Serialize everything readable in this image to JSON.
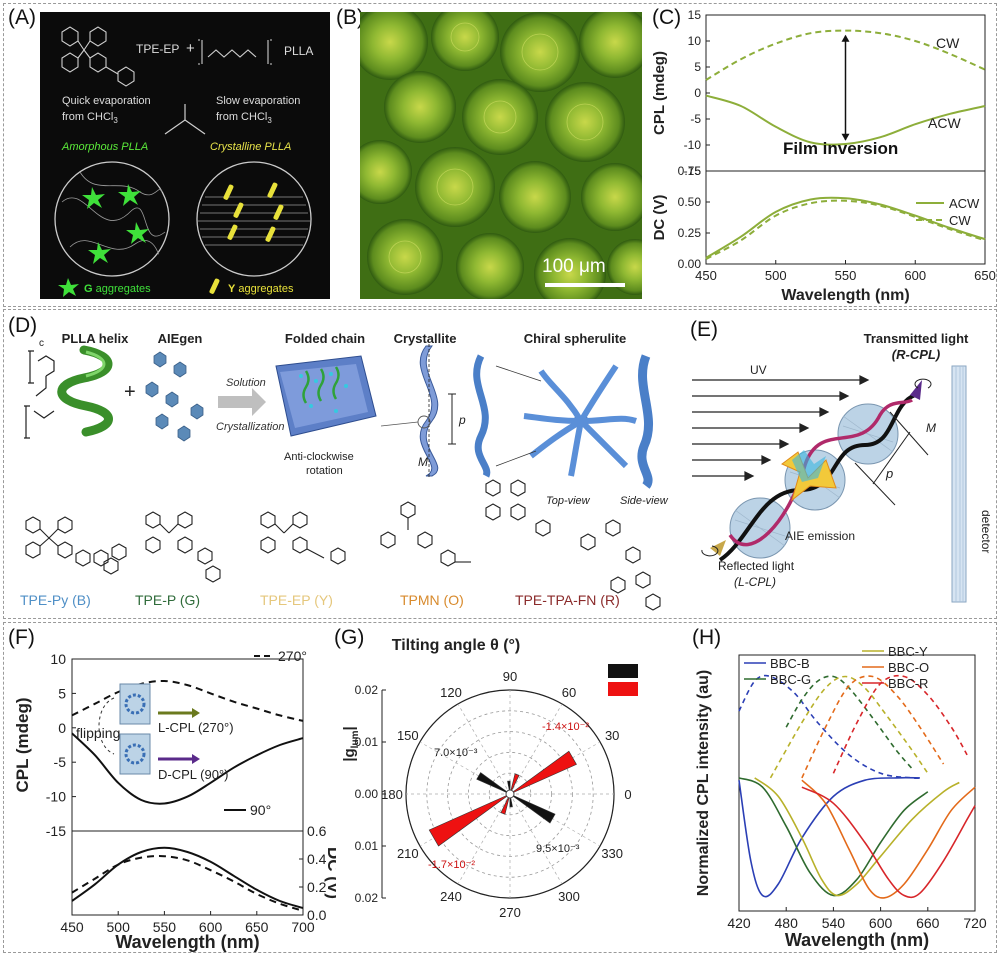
{
  "panels": {
    "A": {
      "label": "(A)",
      "tpe_ep": "TPE-EP",
      "plus": "+",
      "plla": "PLLA",
      "quick": "Quick evaporation",
      "quick2": "from CHCl",
      "slow": "Slow evaporation",
      "slow2": "from CHCl",
      "sub3": "3",
      "amorphous": "Amorphous PLLA",
      "crystalline": "Crystalline PLLA",
      "g_agg": "G aggregates",
      "y_agg": "Y aggregates",
      "g_letter": "G",
      "y_letter": "Y",
      "g_rest": " aggregates",
      "y_rest": " aggregates"
    },
    "B": {
      "label": "(B)",
      "scale": "100 μm"
    },
    "C": {
      "label": "(C)",
      "ylabel_top": "CPL (mdeg)",
      "ylabel_bot": "DC (V)",
      "xlabel": "Wavelength (nm)",
      "cw": "CW",
      "acw": "ACW",
      "film": "Film inversion",
      "legend_acw": "ACW",
      "legend_cw": "CW"
    },
    "D": {
      "label": "(D)",
      "h1": "PLLA helix",
      "h2": "AIEgen",
      "h3": "Folded chain",
      "h4": "Crystallite",
      "h5": "Chiral spherulite",
      "solution": "Solution",
      "cryst": "Crystallization",
      "anti": "Anti-clockwise",
      "rotation": "rotation",
      "p": "p",
      "m": "M",
      "top": "Top-view",
      "side": "Side-view",
      "c_letter": "c",
      "compounds": [
        {
          "name": "TPE-Py (B)",
          "color": "#4f8fc6"
        },
        {
          "name": "TPE-P (G)",
          "color": "#2f6b3a"
        },
        {
          "name": "TPE-EP (Y)",
          "color": "#e5c77c"
        },
        {
          "name": "TPMN (O)",
          "color": "#d88a2c"
        },
        {
          "name": "TPE-TPA-FN (R)",
          "color": "#8a2a2a"
        }
      ]
    },
    "E": {
      "label": "(E)",
      "trans": "Transmitted light",
      "rcpl": "(R-CPL)",
      "uv": "UV",
      "m": "M",
      "p": "p",
      "aie": "AIE emission",
      "refl": "Reflected light",
      "lcpl": "(L-CPL)",
      "detector": "detector"
    },
    "F": {
      "label": "(F)",
      "ylabel_top": "CPL (mdeg)",
      "ylabel_right": "DC (V)",
      "xlabel": "Wavelength (nm)",
      "leg270": "270°",
      "leg90": "90°",
      "lcpl": "L-CPL (270°)",
      "dcpl": "D-CPL (90°)",
      "flipping": "flipping"
    },
    "G": {
      "label": "(G)",
      "title": "Tilting angle θ (°)",
      "ylabel": "|g",
      "ysub": "lum",
      "ann1": "7.0×10⁻³",
      "ann2": "-1.4×10⁻²",
      "ann3": "-1.7×10⁻²",
      "ann4": "9.5×10⁻³",
      "radial_ticks_up": [
        "0.02",
        "0.01",
        "0.00"
      ],
      "radial_ticks_down": [
        "0.01",
        "0.02"
      ],
      "angles": [
        "90",
        "60",
        "30",
        "0",
        "330",
        "300",
        "270",
        "240",
        "210",
        "180",
        "150",
        "120"
      ]
    },
    "H": {
      "label": "(H)",
      "ylabel": "Normalized CPL intensity (au)",
      "xlabel": "Wavelength (nm)",
      "legend": [
        {
          "name": "BBC-B",
          "color": "#2b3fb5"
        },
        {
          "name": "BBC-G",
          "color": "#2f6b2f"
        },
        {
          "name": "BBC-Y",
          "color": "#b8b12a"
        },
        {
          "name": "BBC-O",
          "color": "#e36a1a"
        },
        {
          "name": "BBC-R",
          "color": "#d8262a"
        }
      ]
    }
  },
  "chart_data": [
    {
      "panel": "C",
      "type": "line",
      "xlabel": "Wavelength (nm)",
      "ylabel": "CPL (mdeg)",
      "xlim": [
        450,
        650
      ],
      "ylim": [
        -15,
        15
      ],
      "xticks": [
        450,
        500,
        550,
        600,
        650
      ],
      "yticks": [
        15,
        10,
        5,
        0,
        -5,
        -10,
        -15
      ],
      "series": [
        {
          "name": "CW",
          "style": "dashed",
          "color": "#8dae3a",
          "x": [
            450,
            475,
            500,
            525,
            550,
            575,
            600,
            625,
            650
          ],
          "y": [
            2.5,
            6.5,
            9.5,
            11.5,
            12.0,
            11.5,
            10.0,
            7.5,
            4.5
          ]
        },
        {
          "name": "ACW",
          "style": "solid",
          "color": "#8dae3a",
          "x": [
            450,
            475,
            500,
            525,
            550,
            575,
            600,
            625,
            650
          ],
          "y": [
            -0.5,
            -2.5,
            -6.5,
            -9.5,
            -9.8,
            -8.5,
            -6.0,
            -4.0,
            -2.5
          ]
        }
      ]
    },
    {
      "panel": "C",
      "type": "line",
      "xlabel": "Wavelength (nm)",
      "ylabel": "DC (V)",
      "xlim": [
        450,
        650
      ],
      "ylim": [
        0.0,
        0.75
      ],
      "xticks": [
        450,
        500,
        550,
        600,
        650
      ],
      "yticks": [
        0.0,
        0.25,
        0.5,
        0.75
      ],
      "xtick_labels": [
        "450",
        "500",
        "550",
        "600",
        "650"
      ],
      "ytick_labels": [
        "0.00",
        "0.25",
        "0.50",
        "0.75"
      ],
      "series": [
        {
          "name": "ACW",
          "style": "solid",
          "color": "#8dae3a",
          "x": [
            450,
            475,
            500,
            525,
            550,
            575,
            600,
            625,
            650
          ],
          "y": [
            0.05,
            0.22,
            0.42,
            0.52,
            0.53,
            0.48,
            0.39,
            0.29,
            0.2
          ]
        },
        {
          "name": "CW",
          "style": "dashed",
          "color": "#8dae3a",
          "x": [
            450,
            475,
            500,
            525,
            550,
            575,
            600,
            625,
            650
          ],
          "y": [
            0.04,
            0.19,
            0.39,
            0.49,
            0.51,
            0.47,
            0.38,
            0.28,
            0.19
          ]
        }
      ]
    },
    {
      "panel": "F",
      "type": "line",
      "xlabel": "Wavelength (nm)",
      "ylabel": "CPL (mdeg)",
      "xlim": [
        450,
        700
      ],
      "ylim": [
        -15,
        10
      ],
      "xticks": [
        450,
        500,
        550,
        600,
        650,
        700
      ],
      "yticks": [
        10,
        5,
        0,
        -5,
        -10,
        -15
      ],
      "series": [
        {
          "name": "270°",
          "style": "dashed",
          "color": "#111111",
          "x": [
            450,
            475,
            500,
            525,
            550,
            575,
            600,
            625,
            650,
            675,
            700
          ],
          "y": [
            1.8,
            3.5,
            5.2,
            6.4,
            6.8,
            6.2,
            5.0,
            3.8,
            2.8,
            1.8,
            1.0
          ]
        },
        {
          "name": "90°",
          "style": "solid",
          "color": "#111111",
          "x": [
            450,
            475,
            500,
            525,
            550,
            575,
            600,
            625,
            650,
            675,
            700
          ],
          "y": [
            -0.8,
            -4.0,
            -8.0,
            -10.5,
            -11.0,
            -10.0,
            -8.0,
            -5.8,
            -4.0,
            -2.5,
            -1.5
          ]
        }
      ]
    },
    {
      "panel": "F",
      "type": "line",
      "ylabel": "DC (V)",
      "xlim": [
        450,
        700
      ],
      "ylim": [
        0.0,
        0.6
      ],
      "yticks": [
        0.0,
        0.2,
        0.4,
        0.6
      ],
      "ytick_labels": [
        "0.0",
        "0.2",
        "0.4",
        "0.6"
      ],
      "series": [
        {
          "style": "solid",
          "color": "#111111",
          "x": [
            450,
            475,
            500,
            525,
            550,
            575,
            600,
            625,
            650,
            675,
            700
          ],
          "y": [
            0.1,
            0.22,
            0.36,
            0.45,
            0.48,
            0.45,
            0.38,
            0.28,
            0.18,
            0.1,
            0.05
          ]
        },
        {
          "style": "dashed",
          "color": "#111111",
          "x": [
            450,
            475,
            500,
            525,
            550,
            575,
            600,
            625,
            650,
            675,
            700
          ],
          "y": [
            0.16,
            0.26,
            0.36,
            0.41,
            0.42,
            0.39,
            0.32,
            0.24,
            0.15,
            0.08,
            0.03
          ]
        }
      ]
    },
    {
      "panel": "G",
      "type": "polar-bar",
      "title": "Tilting angle θ (°)",
      "rlim": [
        0,
        0.02
      ],
      "series": [
        {
          "color": "#111111",
          "theta": [
            150,
            330
          ],
          "r": [
            0.007,
            0.0095
          ]
        },
        {
          "color": "#ee1111",
          "theta": [
            30,
            210
          ],
          "r": [
            0.014,
            0.017
          ]
        }
      ]
    },
    {
      "panel": "H",
      "type": "line",
      "xlabel": "Wavelength (nm)",
      "ylabel": "Normalized CPL intensity (au)",
      "xlim": [
        420,
        720
      ],
      "xticks": [
        420,
        480,
        540,
        600,
        660,
        720
      ],
      "series": [
        {
          "name": "BBC-B",
          "color": "#2b3fb5",
          "x": [
            420,
            435,
            450,
            470,
            500,
            540,
            580,
            620,
            650
          ],
          "y": [
            0.55,
            0.2,
            0.05,
            0.1,
            0.3,
            0.48,
            0.55,
            0.56,
            0.56
          ]
        },
        {
          "name": "BBC-G",
          "color": "#2f6b2f",
          "x": [
            420,
            450,
            480,
            510,
            540,
            570,
            600,
            630,
            660
          ],
          "y": [
            0.56,
            0.52,
            0.35,
            0.15,
            0.05,
            0.12,
            0.28,
            0.42,
            0.5
          ]
        },
        {
          "name": "BBC-Y",
          "color": "#b8b12a",
          "x": [
            440,
            470,
            500,
            525,
            545,
            570,
            600,
            640,
            680,
            700
          ],
          "y": [
            0.56,
            0.48,
            0.3,
            0.12,
            0.05,
            0.1,
            0.22,
            0.38,
            0.5,
            0.54
          ]
        },
        {
          "name": "BBC-O",
          "color": "#e36a1a",
          "x": [
            500,
            530,
            560,
            585,
            605,
            630,
            660,
            690,
            720
          ],
          "y": [
            0.55,
            0.45,
            0.25,
            0.08,
            0.04,
            0.1,
            0.25,
            0.42,
            0.52
          ]
        },
        {
          "name": "BBC-R",
          "color": "#d8262a",
          "x": [
            500,
            540,
            580,
            610,
            630,
            650,
            680,
            710,
            720
          ],
          "y": [
            0.52,
            0.45,
            0.28,
            0.12,
            0.05,
            0.06,
            0.2,
            0.38,
            0.44
          ]
        }
      ],
      "dashed_series": [
        {
          "name": "BBC-B",
          "color": "#2b3fb5",
          "x": [
            420,
            440,
            460,
            490,
            520,
            560,
            600,
            640,
            650
          ],
          "y": [
            0.85,
            0.98,
            1.0,
            0.93,
            0.8,
            0.66,
            0.58,
            0.56,
            0.56
          ]
        },
        {
          "name": "BBC-G",
          "color": "#2f6b2f",
          "x": [
            480,
            500,
            520,
            540,
            560,
            590,
            620,
            640
          ],
          "y": [
            0.78,
            0.9,
            0.98,
            1.0,
            0.95,
            0.82,
            0.68,
            0.6
          ]
        },
        {
          "name": "BBC-Y",
          "color": "#b8b12a",
          "x": [
            460,
            500,
            530,
            555,
            580,
            610,
            640,
            660
          ],
          "y": [
            0.56,
            0.8,
            0.95,
            1.0,
            0.95,
            0.82,
            0.68,
            0.58
          ]
        },
        {
          "name": "BBC-O",
          "color": "#e36a1a",
          "x": [
            500,
            530,
            560,
            590,
            620,
            650,
            680
          ],
          "y": [
            0.56,
            0.78,
            0.96,
            1.0,
            0.92,
            0.78,
            0.62
          ]
        },
        {
          "name": "BBC-R",
          "color": "#d8262a",
          "x": [
            540,
            570,
            600,
            630,
            660,
            690,
            710
          ],
          "y": [
            0.58,
            0.8,
            0.97,
            1.0,
            0.92,
            0.78,
            0.66
          ]
        }
      ]
    }
  ]
}
